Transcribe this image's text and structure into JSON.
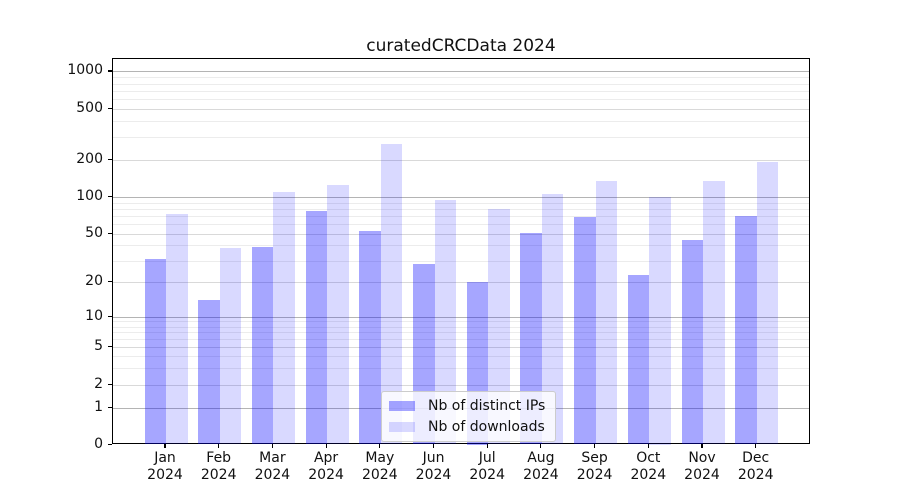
{
  "chart_data": {
    "type": "bar",
    "title": "curatedCRCData 2024",
    "categories": [
      "Jan",
      "Feb",
      "Mar",
      "Apr",
      "May",
      "Jun",
      "Jul",
      "Aug",
      "Sep",
      "Oct",
      "Nov",
      "Dec"
    ],
    "x_year_label": "2024",
    "series": [
      {
        "name": "Nb of distinct IPs",
        "color": "rgba(0,0,255,0.35)",
        "values": [
          31,
          14,
          39,
          77,
          53,
          28,
          20,
          51,
          68,
          23,
          44,
          70
        ]
      },
      {
        "name": "Nb of downloads",
        "color": "rgba(0,0,255,0.15)",
        "values": [
          72,
          38,
          110,
          126,
          265,
          95,
          79,
          106,
          136,
          100,
          136,
          194
        ]
      }
    ],
    "yscale": "symlog",
    "y_ticks": [
      0,
      1,
      2,
      5,
      10,
      20,
      50,
      100,
      200,
      500,
      1000
    ],
    "ylim": [
      0,
      1300
    ],
    "grid": true,
    "legend_position": "lower center",
    "colors": {
      "major_grid": "#b4b4b4",
      "minor_grid": "#ececec",
      "axis": "#000000",
      "background": "#ffffff"
    }
  }
}
